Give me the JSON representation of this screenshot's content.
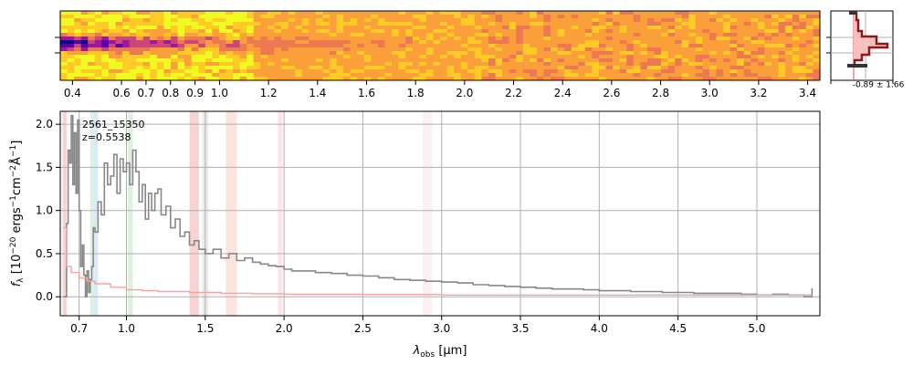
{
  "chart_data": [
    {
      "name": "spectrum-2d",
      "type": "heatmap",
      "colormap": "plasma",
      "x_ticks": [
        "0.4",
        "0.6",
        "0.7",
        "0.8",
        "0.9",
        "1.0",
        "1.2",
        "1.4",
        "1.6",
        "1.8",
        "2.0",
        "2.2",
        "2.4",
        "2.6",
        "2.8",
        "3.0",
        "3.2",
        "3.4"
      ],
      "x_tick_values": [
        0.4,
        0.6,
        0.7,
        0.8,
        0.9,
        1.0,
        1.2,
        1.4,
        1.6,
        1.8,
        2.0,
        2.2,
        2.4,
        2.6,
        2.8,
        3.0,
        3.2,
        3.4
      ],
      "xlim": [
        0.35,
        3.45
      ]
    },
    {
      "name": "spatial-profile",
      "type": "line",
      "annotation": "-0.89 ± 1.66",
      "colors": {
        "profile": "#8b1a1a",
        "fill": "#f4b6b6",
        "model": "#333333"
      }
    },
    {
      "name": "spectrum-1d",
      "type": "line",
      "annotations": [
        "2561_15350",
        "z=0.5538"
      ],
      "xlabel_main": "λ",
      "xlabel_sub": "obs",
      "xlabel_unit": " [μm]",
      "ylabel_main": "f",
      "ylabel_sub": "λ",
      "ylabel_rest": " [10",
      "ylabel_exp": "−20",
      "ylabel_unit": " ergs",
      "ylabel_exp2": "−1",
      "ylabel_unit2": "cm",
      "ylabel_exp3": "−2",
      "ylabel_unit3": "Å",
      "ylabel_exp4": "−1",
      "ylabel_end": "]",
      "xlim": [
        0.58,
        5.4
      ],
      "ylim": [
        -0.22,
        2.15
      ],
      "x_ticks": [
        "0.7",
        "1.0",
        "1.5",
        "2.0",
        "2.5",
        "3.0",
        "3.5",
        "4.0",
        "4.5",
        "5.0"
      ],
      "x_tick_values": [
        0.7,
        1.0,
        1.5,
        2.0,
        2.5,
        3.0,
        3.5,
        4.0,
        4.5,
        5.0
      ],
      "y_ticks": [
        "0.0",
        "0.5",
        "1.0",
        "1.5",
        "2.0"
      ],
      "y_tick_values": [
        0.0,
        0.5,
        1.0,
        1.5,
        2.0
      ],
      "grid": true,
      "series": [
        {
          "role": "flux",
          "color": "#888888",
          "x": [
            0.6,
            0.62,
            0.63,
            0.64,
            0.65,
            0.66,
            0.67,
            0.68,
            0.69,
            0.7,
            0.71,
            0.72,
            0.73,
            0.74,
            0.75,
            0.76,
            0.77,
            0.78,
            0.79,
            0.8,
            0.82,
            0.84,
            0.86,
            0.88,
            0.9,
            0.92,
            0.94,
            0.96,
            0.98,
            1.0,
            1.02,
            1.04,
            1.06,
            1.08,
            1.1,
            1.12,
            1.14,
            1.16,
            1.18,
            1.2,
            1.22,
            1.25,
            1.28,
            1.31,
            1.34,
            1.37,
            1.4,
            1.43,
            1.46,
            1.5,
            1.55,
            1.6,
            1.65,
            1.7,
            1.75,
            1.8,
            1.85,
            1.9,
            1.95,
            2.0,
            2.05,
            2.1,
            2.2,
            2.3,
            2.4,
            2.5,
            2.6,
            2.7,
            2.8,
            2.9,
            3.0,
            3.1,
            3.2,
            3.3,
            3.4,
            3.5,
            3.6,
            3.7,
            3.8,
            3.9,
            4.0,
            4.1,
            4.2,
            4.3,
            4.4,
            4.5,
            4.6,
            4.7,
            4.8,
            4.9,
            5.0,
            5.1,
            5.2,
            5.3,
            5.35
          ],
          "y": [
            0.0,
            0.85,
            1.7,
            1.55,
            2.1,
            1.3,
            1.9,
            1.2,
            2.05,
            1.0,
            0.35,
            0.6,
            0.25,
            0.0,
            0.3,
            0.05,
            0.2,
            0.35,
            0.8,
            0.75,
            1.1,
            0.95,
            1.55,
            1.3,
            1.4,
            1.65,
            1.2,
            1.6,
            1.45,
            1.55,
            1.3,
            1.7,
            1.45,
            1.1,
            1.3,
            0.9,
            1.2,
            1.0,
            1.2,
            1.25,
            0.95,
            1.05,
            0.8,
            0.9,
            0.7,
            0.75,
            0.6,
            0.65,
            0.55,
            0.5,
            0.55,
            0.45,
            0.5,
            0.42,
            0.45,
            0.4,
            0.38,
            0.36,
            0.35,
            0.32,
            0.3,
            0.3,
            0.28,
            0.27,
            0.25,
            0.24,
            0.22,
            0.2,
            0.19,
            0.18,
            0.17,
            0.16,
            0.14,
            0.13,
            0.12,
            0.11,
            0.1,
            0.09,
            0.09,
            0.08,
            0.07,
            0.07,
            0.06,
            0.06,
            0.05,
            0.05,
            0.04,
            0.04,
            0.04,
            0.03,
            0.02,
            0.03,
            0.02,
            0.0,
            0.1
          ]
        },
        {
          "role": "error",
          "color": "#f4a3a3",
          "x": [
            0.6,
            0.62,
            0.65,
            0.7,
            0.75,
            0.8,
            0.9,
            1.0,
            1.1,
            1.2,
            1.4,
            1.6,
            1.8,
            2.0,
            2.5,
            3.0,
            3.5,
            4.0,
            4.5,
            5.0,
            5.35
          ],
          "y": [
            0.8,
            0.35,
            0.28,
            0.22,
            0.18,
            0.15,
            0.11,
            0.08,
            0.07,
            0.06,
            0.05,
            0.04,
            0.035,
            0.03,
            0.025,
            0.02,
            0.02,
            0.02,
            0.02,
            0.02,
            0.02
          ]
        }
      ],
      "bands": [
        {
          "x0": 0.595,
          "x1": 0.62,
          "color": "#f4b6b6"
        },
        {
          "x0": 0.77,
          "x1": 0.79,
          "color": "#c8e6c8"
        },
        {
          "x0": 0.79,
          "x1": 0.82,
          "color": "#bfe0f0"
        },
        {
          "x0": 1.01,
          "x1": 1.04,
          "color": "#c8e6c8"
        },
        {
          "x0": 1.4,
          "x1": 1.46,
          "color": "#f4b6b6"
        },
        {
          "x0": 1.48,
          "x1": 1.52,
          "color": "#dddddd"
        },
        {
          "x0": 1.63,
          "x1": 1.7,
          "color": "#fcd0c8"
        },
        {
          "x0": 1.96,
          "x1": 1.99,
          "color": "#f4d6e0"
        },
        {
          "x0": 2.88,
          "x1": 2.94,
          "color": "#fbe4ec"
        }
      ]
    }
  ]
}
